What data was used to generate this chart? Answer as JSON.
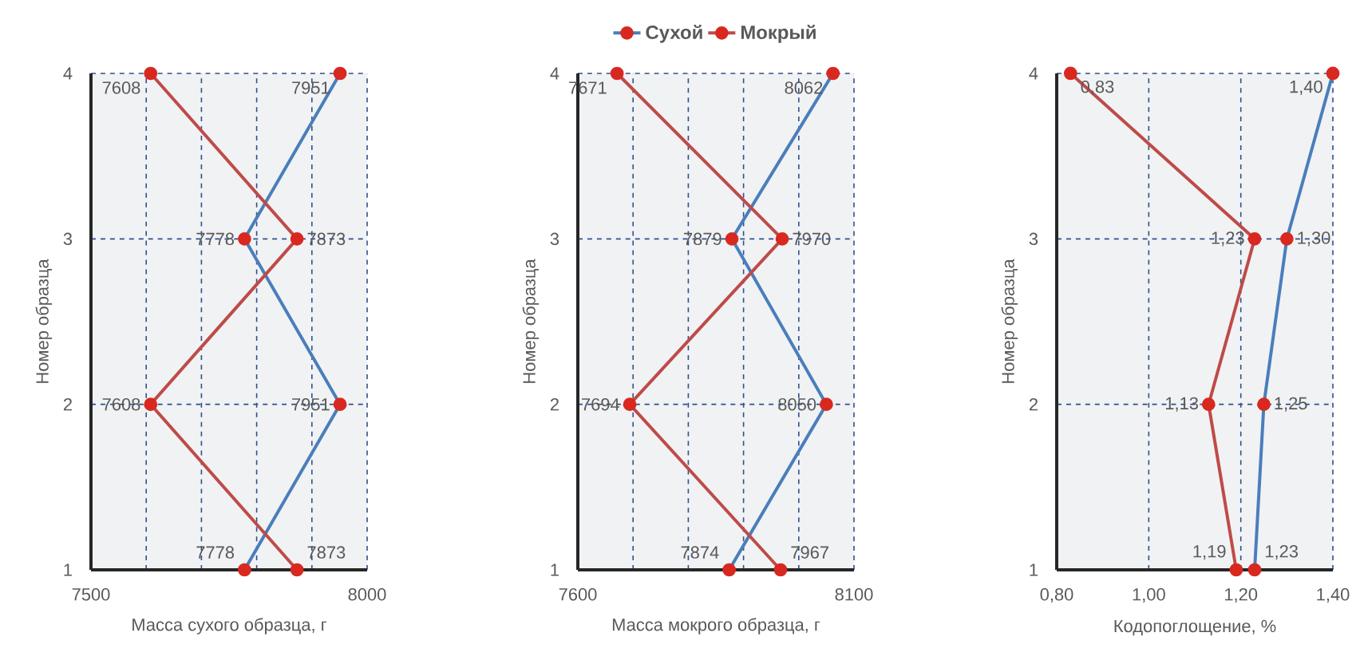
{
  "chart_data": [
    {
      "type": "line",
      "orientation": "horizontal",
      "xlabel": "Масса сухого образца, г",
      "ylabel": "Номер образца",
      "xlim": [
        7500,
        8000
      ],
      "xticks": [
        7500,
        {
          "value": 7600,
          "label": null
        },
        {
          "value": 7700,
          "label": null
        },
        {
          "value": 7800,
          "label": null
        },
        {
          "value": 7900,
          "label": null
        },
        8000
      ],
      "categories": [
        "4",
        "3",
        "2",
        "1"
      ],
      "grid": true,
      "marker": "circle",
      "legend": false,
      "series": [
        {
          "color": "#4a7ebb",
          "values": [
            7951,
            7778,
            7951,
            7778
          ],
          "value_labels": [
            "7951",
            "7778",
            "7951",
            "7778"
          ]
        },
        {
          "color": "#be4b48",
          "values": [
            7608,
            7873,
            7608,
            7873
          ],
          "value_labels": [
            "7608",
            "7873",
            "7608",
            "7873"
          ]
        }
      ]
    },
    {
      "type": "line",
      "orientation": "horizontal",
      "xlabel": "Масса мокрого образца, г",
      "ylabel": "Номер образца",
      "xlim": [
        7600,
        8100
      ],
      "xticks": [
        7600,
        {
          "value": 7700,
          "label": null
        },
        {
          "value": 7800,
          "label": null
        },
        {
          "value": 7900,
          "label": null
        },
        {
          "value": 8000,
          "label": null
        },
        8100
      ],
      "categories": [
        "4",
        "3",
        "2",
        "1"
      ],
      "grid": true,
      "marker": "circle",
      "legend": "top",
      "series": [
        {
          "name": "Сухой",
          "color": "#4a7ebb",
          "values": [
            8062,
            7879,
            8050,
            7874
          ],
          "value_labels": [
            "8062",
            "7879",
            "8050",
            "7874"
          ]
        },
        {
          "name": "Мокрый",
          "color": "#be4b48",
          "values": [
            7671,
            7970,
            7694,
            7967
          ],
          "value_labels": [
            "7671",
            "7970",
            "7694",
            "7967"
          ]
        }
      ]
    },
    {
      "type": "line",
      "orientation": "horizontal",
      "xlabel": "Кодопоглощение, %",
      "ylabel": "Номер образца",
      "xlim": [
        0.8,
        1.4
      ],
      "xticks": [
        {
          "value": 0.8,
          "label": "0,80"
        },
        {
          "value": 1.0,
          "label": "1,00"
        },
        {
          "value": 1.2,
          "label": "1,20"
        },
        {
          "value": 1.4,
          "label": "1,40"
        }
      ],
      "categories": [
        "4",
        "3",
        "2",
        "1"
      ],
      "grid": true,
      "marker": "circle",
      "legend": false,
      "series": [
        {
          "color": "#4a7ebb",
          "values": [
            1.4,
            1.3,
            1.25,
            1.23
          ],
          "value_labels": [
            "1,40",
            "1,30",
            "1,25",
            "1,23"
          ]
        },
        {
          "color": "#be4b48",
          "values": [
            0.83,
            1.23,
            1.13,
            1.19
          ],
          "value_labels": [
            "0,83",
            "1,23",
            "1,13",
            "1,19"
          ]
        }
      ]
    }
  ]
}
